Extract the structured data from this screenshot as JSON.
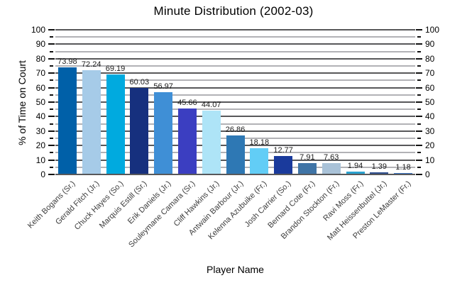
{
  "chart_data": {
    "type": "bar",
    "title": "Minute Distribution (2002-03)",
    "xlabel": "Player Name",
    "ylabel": "% of Time on Court",
    "ylim": [
      0,
      100
    ],
    "y_major_step": 10,
    "y_minor_step": 5,
    "grid": true,
    "legend": "none",
    "y_ticks": [
      0,
      10,
      20,
      30,
      40,
      50,
      60,
      70,
      80,
      90,
      100
    ],
    "categories": [
      "Keith Bogans (Sr.)",
      "Gerald Fitch (Jr.)",
      "Chuck Hayes (So.)",
      "Marquis Estill (Sr.)",
      "Erik Daniels (Jr.)",
      "Souleymane Camara (Sr.)",
      "Cliff Hawkins (Jr.)",
      "Antwain Barbour (Jr.)",
      "Kelenna Azubuike (Fr.)",
      "Josh Carrier (So.)",
      "Bernard Cote (Fr.)",
      "Brandon Stockton (Fr.)",
      "Ravi Moss (Fr.)",
      "Matt Heissenbuttel (Jr.)",
      "Preston LeMaster (Fr.)"
    ],
    "values": [
      73.98,
      72.24,
      69.19,
      60.03,
      56.97,
      45.66,
      44.07,
      26.86,
      18.18,
      12.77,
      7.91,
      7.63,
      1.94,
      1.39,
      1.18
    ],
    "value_labels": [
      "73.98",
      "72.24",
      "69.19",
      "60.03",
      "56.97",
      "45.66",
      "44.07",
      "26.86",
      "18.18",
      "12.77",
      "7.91",
      "7.63",
      "1.94",
      "1.39",
      "1.18"
    ],
    "bar_colors": [
      "#0060a8",
      "#a6cbe8",
      "#00aadf",
      "#16307e",
      "#3f8fd6",
      "#3b3ec1",
      "#aee4f7",
      "#2e78b4",
      "#62cdf6",
      "#1a3a9c",
      "#3f74a6",
      "#a9c2d8",
      "#2aa2cf",
      "#2d4d8e",
      "#3c74c4"
    ],
    "grid_major_color": "#58585a",
    "grid_minor_color": "#b2b2b6"
  }
}
